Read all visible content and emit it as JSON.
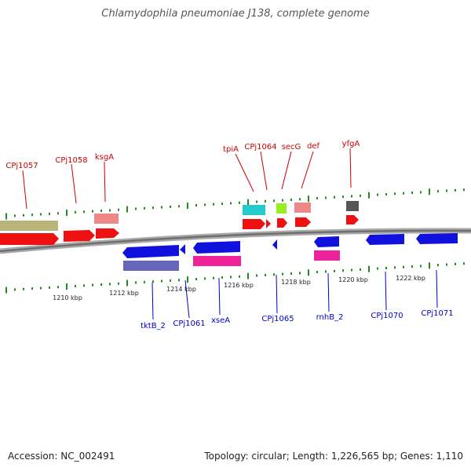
{
  "title": "Chlamydophila pneumoniae J138, complete genome",
  "footer": {
    "accession": "Accession: NC_002491",
    "summary": "Topology: circular; Length: 1,226,565 bp; Genes: 1,110"
  },
  "colors": {
    "top_label": "#cc0000",
    "bottom_label": "#0000cc",
    "tick": "#228b22",
    "backbone": "#888888"
  },
  "scale_labels": [
    "1210 kbp",
    "1212 kbp",
    "1214 kbp",
    "1216 kbp",
    "1218 kbp",
    "1220 kbp",
    "1222 kbp"
  ],
  "top_genes": [
    "CPj1057",
    "CPj1058",
    "ksgA",
    "tpiA",
    "CPj1064",
    "secG",
    "def",
    "yfgA"
  ],
  "bottom_genes": [
    "tktB_2",
    "CPj1061",
    "xseA",
    "CPj1065",
    "rnhB_2",
    "CPj1070",
    "CPj1071"
  ]
}
